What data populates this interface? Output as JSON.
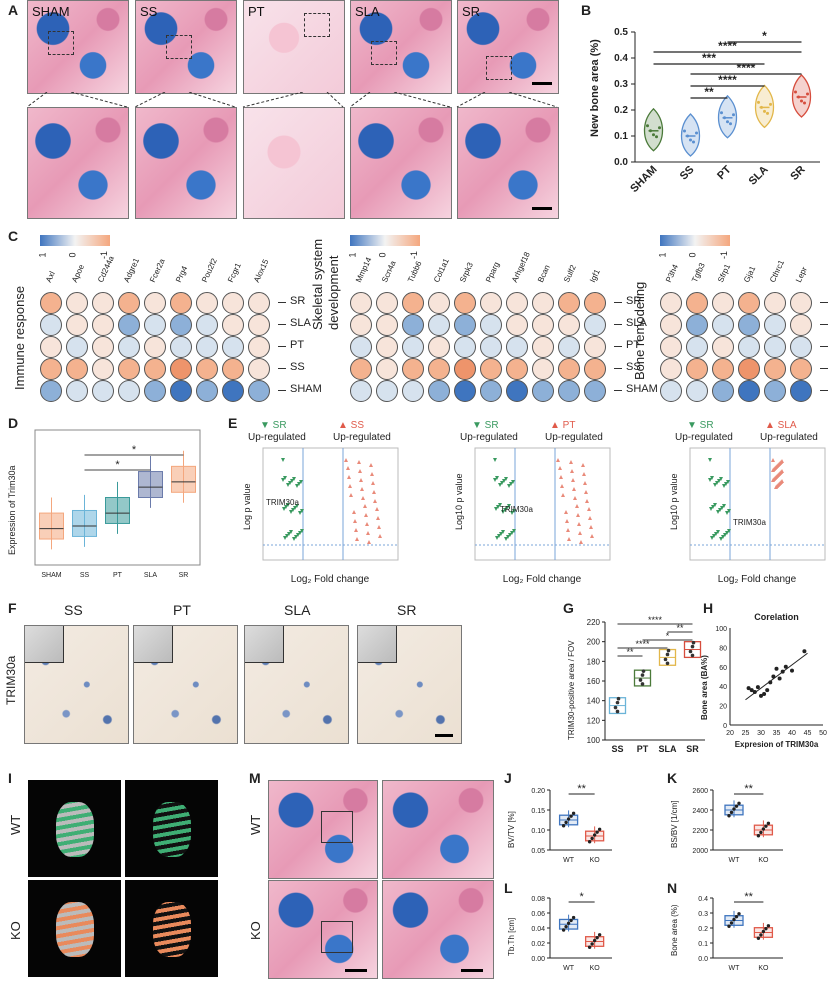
{
  "panels": {
    "A": {
      "label": "A",
      "groups": [
        "SHAM",
        "SS",
        "PT",
        "SLA",
        "SR"
      ]
    },
    "B": {
      "label": "B",
      "ylabel": "New bone area (%)",
      "yticks": [
        "0.0",
        "0.1",
        "0.2",
        "0.3",
        "0.4",
        "0.5"
      ],
      "sig": [
        "*",
        "****",
        "***",
        "****",
        "****",
        "**"
      ]
    },
    "C": {
      "label": "C",
      "legend_ticks": [
        "1",
        "0",
        "-1"
      ],
      "groups": [
        "SR",
        "SLA",
        "PT",
        "SS",
        "SHAM"
      ],
      "sections": [
        {
          "title": "Immune response",
          "genes": [
            "Axl",
            "Apoe",
            "Cd244a",
            "Adgre1",
            "Fcer2a",
            "Prg4",
            "Pou2f2",
            "Fcgr1",
            "Alox15"
          ]
        },
        {
          "title": "Skeletal system development",
          "title2": "development",
          "title1": "Skeletal system",
          "genes": [
            "Mmp14",
            "Scn4a",
            "Tubb6",
            "Col1a1",
            "Srpk3",
            "Pparg",
            "Arhgef18",
            "Bcan",
            "Sulf2",
            "Igf1"
          ]
        },
        {
          "title": "Bone remodeling",
          "genes": [
            "P3h4",
            "Tgfb3",
            "Sfrp1",
            "Gja1",
            "Cthrc1",
            "Lepr"
          ]
        }
      ]
    },
    "D": {
      "label": "D",
      "ylabel": "Expression of Trim30a",
      "sig": [
        "*",
        "*"
      ]
    },
    "E": {
      "label": "E",
      "plots": [
        {
          "left": "SR",
          "right": "SS",
          "leftsub": "Up-regulated",
          "rightsub": "Up-regulated",
          "ylabel": "Log p value",
          "xlabel": "Log₂ Fold change",
          "gene": "TRIM30a"
        },
        {
          "left": "SR",
          "right": "PT",
          "leftsub": "Up-regulated",
          "rightsub": "Up-regulated",
          "ylabel": "Log10 p value",
          "xlabel": "Log₂ Fold change",
          "gene": "TRIM30a"
        },
        {
          "left": "SR",
          "right": "SLA",
          "leftsub": "Up-regulated",
          "rightsub": "Up-regulated",
          "ylabel": "Log10 p value",
          "xlabel": "Log₂ Fold change",
          "gene": "TRIM30a"
        }
      ]
    },
    "F": {
      "label": "F",
      "groups": [
        "SS",
        "PT",
        "SLA",
        "SR"
      ],
      "side": "TRIM30a"
    },
    "G": {
      "label": "G",
      "ylabel": "TRIM30-positive area / FOV",
      "yticks": [
        "100",
        "120",
        "140",
        "160",
        "180",
        "200",
        "220"
      ],
      "sig": [
        "****",
        "**",
        "*",
        "****",
        "**"
      ]
    },
    "H": {
      "label": "H",
      "title": "Corelation",
      "xlabel": "Expresion of TRIM30a",
      "ylabel": "Bone area (BA%)",
      "xticks": [
        "20",
        "25",
        "30",
        "35",
        "40",
        "45",
        "50"
      ],
      "yticks": [
        "0",
        "20",
        "40",
        "60",
        "80",
        "100"
      ]
    },
    "I": {
      "label": "I",
      "rows": [
        "WT",
        "KO"
      ]
    },
    "M": {
      "label": "M",
      "rows": [
        "WT",
        "KO"
      ]
    },
    "J": {
      "label": "J",
      "ylabel": "BV/TV [%]",
      "yticks": [
        "0.05",
        "0.10",
        "0.15",
        "0.20"
      ],
      "sig": "**",
      "groups": [
        "WT",
        "KO"
      ]
    },
    "K": {
      "label": "K",
      "ylabel": "BS/BV [1/cm]",
      "yticks": [
        "2000",
        "2200",
        "2400",
        "2600"
      ],
      "sig": "**",
      "groups": [
        "WT",
        "KO"
      ]
    },
    "L": {
      "label": "L",
      "ylabel": "Tb.Th [cm]",
      "yticks": [
        "0.00",
        "0.02",
        "0.04",
        "0.06",
        "0.08"
      ],
      "sig": "*",
      "groups": [
        "WT",
        "KO"
      ]
    },
    "N": {
      "label": "N",
      "ylabel": "Bone area (%)",
      "yticks": [
        "0.0",
        "0.1",
        "0.2",
        "0.3",
        "0.4"
      ],
      "sig": "**",
      "groups": [
        "WT",
        "KO"
      ]
    }
  },
  "chart_data": [
    {
      "panel": "B",
      "type": "violin",
      "categories": [
        "SHAM",
        "SS",
        "PT",
        "SLA",
        "SR"
      ],
      "values": [
        0.12,
        0.1,
        0.17,
        0.21,
        0.25
      ],
      "colors": [
        "#4b7a3a",
        "#5a8fd0",
        "#5a8fd0",
        "#e2b74a",
        "#d64d3d"
      ],
      "ylabel": "New bone area (%)",
      "ylim": [
        0,
        0.5
      ]
    },
    {
      "panel": "D",
      "type": "box",
      "categories": [
        "SHAM",
        "SS",
        "PT",
        "SLA",
        "SR"
      ],
      "values": [
        29,
        29.5,
        32,
        37,
        38
      ],
      "ylabel": "Expression of Trim30a"
    },
    {
      "panel": "G",
      "type": "box",
      "categories": [
        "SS",
        "PT",
        "SLA",
        "SR"
      ],
      "values": [
        135,
        163,
        184,
        192
      ],
      "ylabel": "TRIM30-positive area / FOV",
      "ylim": [
        100,
        220
      ]
    },
    {
      "panel": "H",
      "type": "scatter",
      "title": "Corelation",
      "x": [
        26,
        27,
        28,
        29,
        30,
        31,
        32,
        33,
        34,
        35,
        36,
        37,
        38,
        40,
        44
      ],
      "y": [
        38,
        36,
        34,
        39,
        30,
        32,
        36,
        44,
        50,
        58,
        48,
        55,
        60,
        56,
        76
      ],
      "xlabel": "Expresion of TRIM30a",
      "ylabel": "Bone area (BA%)",
      "xlim": [
        20,
        50
      ],
      "ylim": [
        0,
        100
      ]
    },
    {
      "panel": "J",
      "type": "box",
      "categories": [
        "WT",
        "KO"
      ],
      "values": [
        0.125,
        0.085
      ],
      "ylabel": "BV/TV [%]",
      "ylim": [
        0.05,
        0.2
      ]
    },
    {
      "panel": "K",
      "type": "box",
      "categories": [
        "WT",
        "KO"
      ],
      "values": [
        2400,
        2200
      ],
      "ylabel": "BS/BV [1/cm]",
      "ylim": [
        2000,
        2600
      ]
    },
    {
      "panel": "L",
      "type": "box",
      "categories": [
        "WT",
        "KO"
      ],
      "values": [
        0.045,
        0.022
      ],
      "ylabel": "Tb.Th [cm]",
      "ylim": [
        0,
        0.08
      ]
    },
    {
      "panel": "N",
      "type": "box",
      "categories": [
        "WT",
        "KO"
      ],
      "values": [
        0.25,
        0.17
      ],
      "ylabel": "Bone area (%)",
      "ylim": [
        0,
        0.4
      ]
    }
  ],
  "colors": {
    "blue": "#3f75bf",
    "red": "#e05a4a",
    "green": "#3a9a60",
    "orange": "#e98a5c"
  }
}
